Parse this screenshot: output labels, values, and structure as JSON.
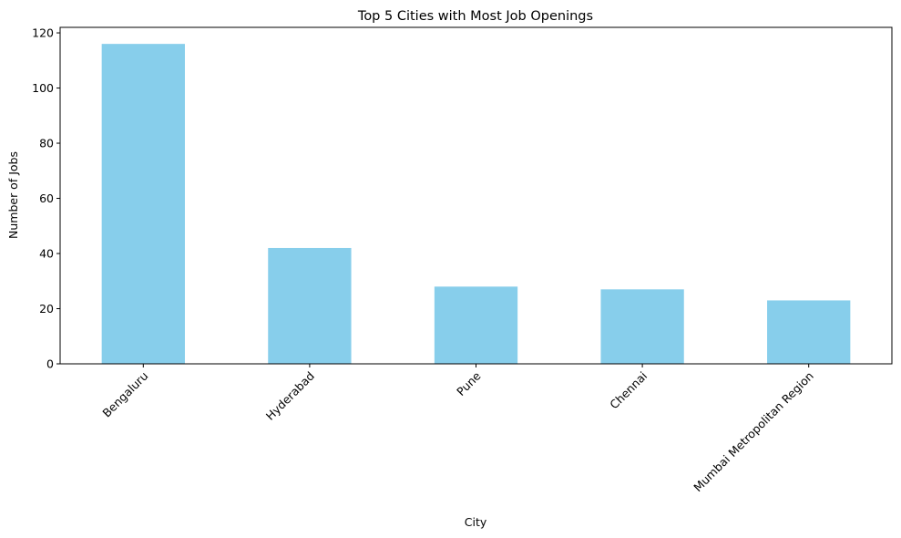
{
  "chart_data": {
    "type": "bar",
    "title": "Top 5 Cities with Most Job Openings",
    "xlabel": "City",
    "ylabel": "Number of Jobs",
    "categories": [
      "Bengaluru",
      "Hyderabad",
      "Pune",
      "Chennai",
      "Mumbai Metropolitan Region"
    ],
    "values": [
      116,
      42,
      28,
      27,
      23
    ],
    "ylim": [
      0,
      122
    ],
    "yticks": [
      0,
      20,
      40,
      60,
      80,
      100,
      120
    ],
    "bar_color": "#87ceeb",
    "grid": false,
    "legend": "none"
  }
}
